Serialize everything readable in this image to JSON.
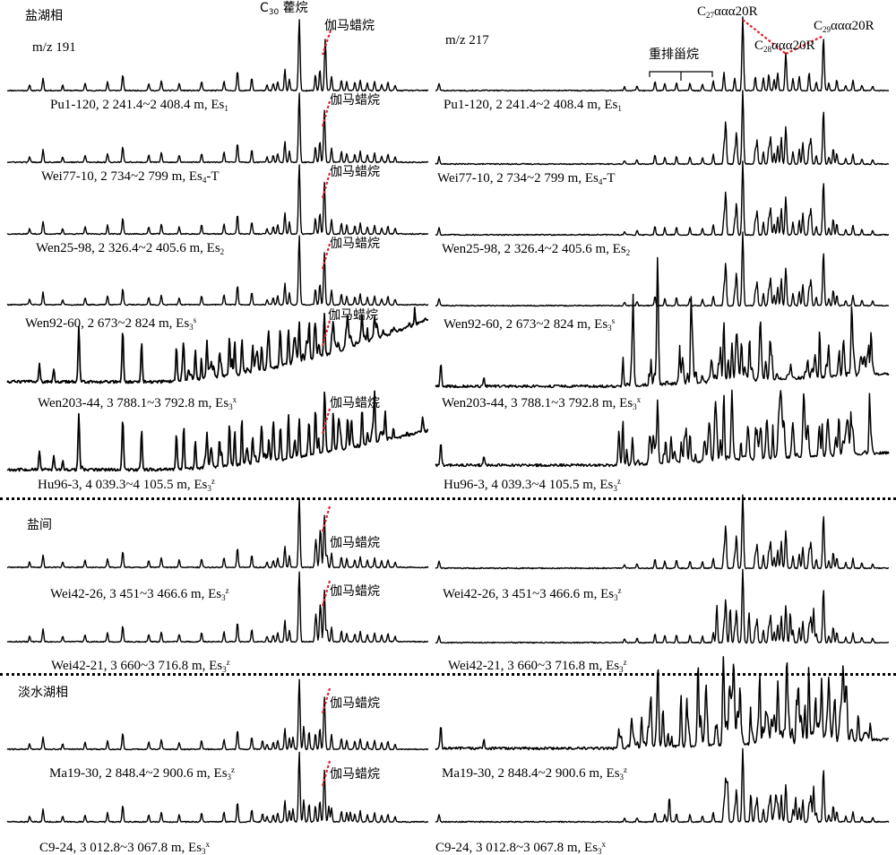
{
  "chart_data": {
    "type": "line",
    "facies": [
      {
        "label": "盐湖相",
        "samples": [
          "Pu1-120",
          "Wei77-10",
          "Wen25-98",
          "Wen92-60",
          "Wen203-44",
          "Hu96-3"
        ]
      },
      {
        "label": "盐间",
        "samples": [
          "Wei42-26",
          "Wei42-21"
        ]
      },
      {
        "label": "淡水湖相",
        "samples": [
          "Ma19-30",
          "C9-24"
        ]
      }
    ],
    "ion_left": "m/z 191",
    "ion_right": "m/z 217",
    "peak_labels": {
      "c30_hopane": {
        "pre": "C",
        "sub": "30",
        "post": " 藿烷"
      },
      "gammacerane": "伽马蜡烷",
      "rearranged_steranes": "重排甾烷",
      "c27": {
        "pre": "C",
        "sub": "27",
        "post": "ααα20R"
      },
      "c28": {
        "pre": "C",
        "sub": "28",
        "post": "ααα20R"
      },
      "c29": {
        "pre": "C",
        "sub": "29",
        "post": "ααα20R"
      }
    },
    "samples": [
      {
        "id": "Pu1-120",
        "depth": "2 241.4~2 408.4 m",
        "fm": "Es",
        "fm_sub": "1",
        "fm_sup": "",
        "fm_suffix": ""
      },
      {
        "id": "Wei77-10",
        "depth": "2 734~2 799 m",
        "fm": "Es",
        "fm_sub": "4",
        "fm_sup": "",
        "fm_suffix": "-T"
      },
      {
        "id": "Wen25-98",
        "depth": "2 326.4~2 405.6 m",
        "fm": "Es",
        "fm_sub": "2",
        "fm_sup": "",
        "fm_suffix": ""
      },
      {
        "id": "Wen92-60",
        "depth": "2 673~2 824 m",
        "fm": "Es",
        "fm_sub": "3",
        "fm_sup": "s",
        "fm_suffix": ""
      },
      {
        "id": "Wen203-44",
        "depth": "3 788.1~3 792.8 m",
        "fm": "Es",
        "fm_sub": "3",
        "fm_sup": "x",
        "fm_suffix": ""
      },
      {
        "id": "Hu96-3",
        "depth": "4 039.3~4 105.5 m",
        "fm": "Es",
        "fm_sub": "3",
        "fm_sup": "z",
        "fm_suffix": ""
      },
      {
        "id": "Wei42-26",
        "depth": "3 451~3 466.6 m",
        "fm": "Es",
        "fm_sub": "3",
        "fm_sup": "z",
        "fm_suffix": ""
      },
      {
        "id": "Wei42-21",
        "depth": "3 660~3 716.8 m",
        "fm": "Es",
        "fm_sub": "3",
        "fm_sup": "z",
        "fm_suffix": ""
      },
      {
        "id": "Ma19-30",
        "depth": "2 848.4~2 900.6 m",
        "fm": "Es",
        "fm_sub": "3",
        "fm_sup": "z",
        "fm_suffix": ""
      },
      {
        "id": "C9-24",
        "depth": "3 012.8~3 067.8 m",
        "fm": "Es",
        "fm_sub": "3",
        "fm_sup": "x",
        "fm_suffix": ""
      }
    ],
    "colors": {
      "trace": "#000000",
      "marker": "#e0242a"
    }
  }
}
